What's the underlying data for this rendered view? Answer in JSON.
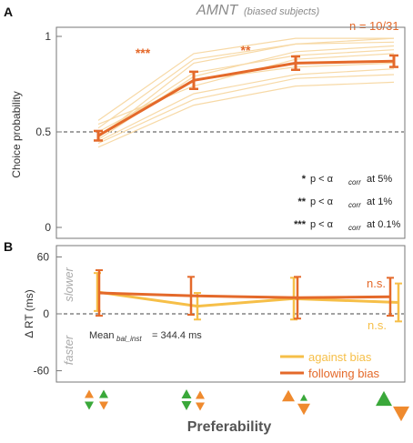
{
  "figure": {
    "title_main": "AMNT",
    "title_sub": "(biased subjects)",
    "xlabel": "Preferability"
  },
  "colors": {
    "following": "#e4692a",
    "against": "#f6bf48",
    "individual": "#f7d9a6",
    "green": "#3aa83a",
    "orange": "#ef8a2e",
    "frame": "#777777"
  },
  "chart_data": [
    {
      "panel": "A",
      "panel_label": "A",
      "type": "line",
      "n_text": "n = 10/31",
      "ylabel": "Choice probability",
      "ylim": [
        0,
        1
      ],
      "yticks": [
        "0",
        "0.5",
        "1"
      ],
      "reference_line": 0.5,
      "x": [
        1,
        2,
        3,
        4
      ],
      "series": [
        {
          "values": [
            0.48,
            0.77,
            0.86,
            0.87
          ],
          "errors": [
            0.025,
            0.045,
            0.035,
            0.03
          ]
        }
      ],
      "individual_lines": [
        [
          0.42,
          0.64,
          0.74,
          0.76
        ],
        [
          0.45,
          0.7,
          0.8,
          0.83
        ],
        [
          0.47,
          0.86,
          0.96,
          0.99
        ],
        [
          0.48,
          0.81,
          0.9,
          0.93
        ],
        [
          0.5,
          0.77,
          0.84,
          0.86
        ],
        [
          0.52,
          0.88,
          0.96,
          0.97
        ],
        [
          0.54,
          0.74,
          0.88,
          0.91
        ],
        [
          0.56,
          0.91,
          0.99,
          0.99
        ],
        [
          0.44,
          0.67,
          0.78,
          0.8
        ],
        [
          0.46,
          0.79,
          0.92,
          0.95
        ]
      ],
      "significance": [
        {
          "label": "***",
          "between": [
            1,
            2
          ]
        },
        {
          "label": "**",
          "between": [
            2,
            3
          ]
        }
      ],
      "legend_stars": [
        {
          "stars": "*",
          "text": " at 5%"
        },
        {
          "stars": "**",
          "text": " at 1%"
        },
        {
          "stars": "***",
          "text": " at 0.1%"
        }
      ],
      "legend_p": "p < α",
      "legend_sub": "corr"
    },
    {
      "panel": "B",
      "panel_label": "B",
      "type": "line",
      "ylabel": "Δ RT (ms)",
      "ylim": [
        -70,
        70
      ],
      "yticks": [
        "60",
        "0",
        "-60"
      ],
      "yticks_values": [
        60,
        0,
        -60
      ],
      "reference_line": 0,
      "slower_label": "slower",
      "faster_label": "faster",
      "mean_label": "Mean",
      "mean_sub": "bal_inst",
      "mean_value": " = 344.4 ms",
      "x": [
        1,
        2,
        3,
        4
      ],
      "series": [
        {
          "name": "against bias",
          "values": [
            23,
            8,
            16,
            12
          ],
          "errors": [
            20,
            14,
            22,
            20
          ],
          "ns": "n.s."
        },
        {
          "name": "following bias",
          "values": [
            22,
            19,
            17,
            18
          ],
          "errors": [
            24,
            20,
            22,
            20
          ],
          "ns": "n.s."
        }
      ]
    }
  ]
}
